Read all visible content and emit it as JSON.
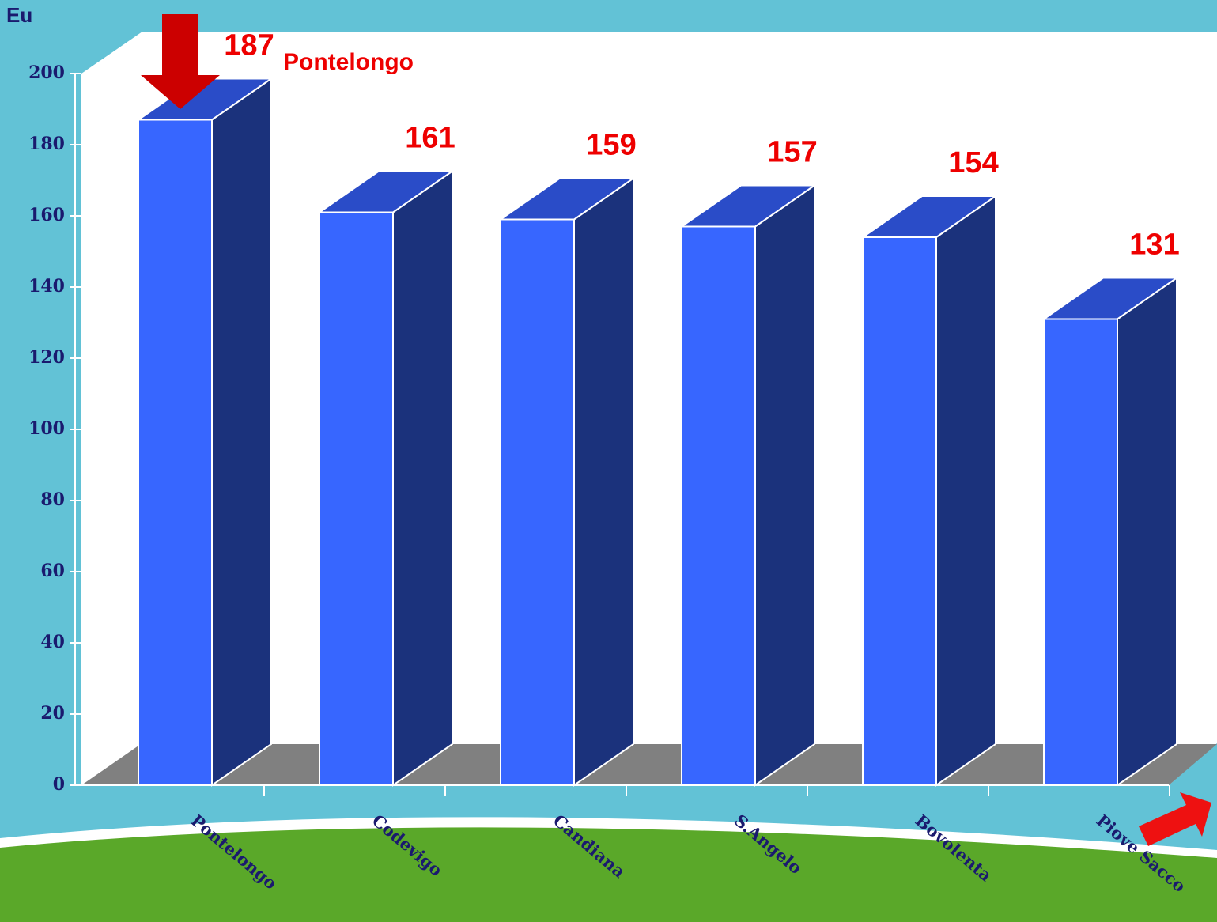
{
  "chart_data": {
    "type": "bar3d",
    "y_label": "Eu",
    "categories": [
      "Pontelongo",
      "Codevigo",
      "Candiana",
      "S.Angelo",
      "Bovolenta",
      "Piove Sacco"
    ],
    "values": [
      187,
      161,
      159,
      157,
      154,
      131
    ],
    "annotation": "Pontelongo",
    "color": "#3766ff",
    "ylim": [
      0,
      200
    ],
    "yticks": [
      0,
      20,
      40,
      60,
      80,
      100,
      120,
      140,
      160,
      180,
      200
    ]
  }
}
